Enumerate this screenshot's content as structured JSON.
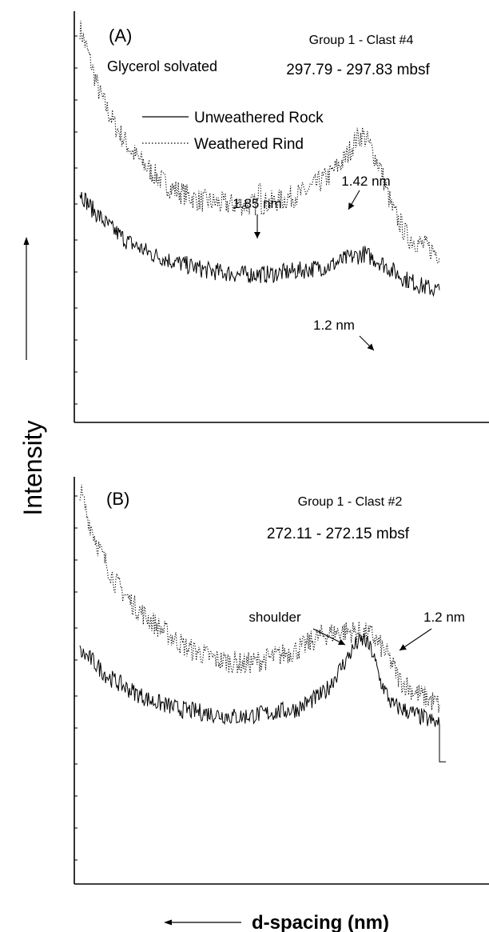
{
  "figure": {
    "y_axis_label": "Intensity",
    "x_axis_label": "d-spacing (nm)"
  },
  "chart_data": [
    {
      "type": "line",
      "panel": "(A)",
      "title": "Group 1 - Clast #4",
      "subtitle": "297.79 - 297.83 mbsf",
      "note": "Glycerol solvated",
      "xlabel": "d-spacing (nm)",
      "ylabel": "Intensity",
      "grid": false,
      "legend_position": "top-center",
      "legend": [
        {
          "name": "Unweathered Rock",
          "style": "solid"
        },
        {
          "name": "Weathered Rind",
          "style": "dotted"
        }
      ],
      "series": [
        {
          "name": "Weathered Rind",
          "style": "dotted",
          "keypoints": [
            [
              0,
              0.96
            ],
            [
              2,
              0.9
            ],
            [
              5,
              0.8
            ],
            [
              9,
              0.72
            ],
            [
              13,
              0.66
            ],
            [
              18,
              0.61
            ],
            [
              23,
              0.57
            ],
            [
              30,
              0.54
            ],
            [
              38,
              0.53
            ],
            [
              45,
              0.53
            ],
            [
              51,
              0.54
            ],
            [
              57,
              0.56
            ],
            [
              63,
              0.6
            ],
            [
              67,
              0.64
            ],
            [
              70,
              0.69
            ],
            [
              71.5,
              0.7
            ],
            [
              73,
              0.68
            ],
            [
              76,
              0.62
            ],
            [
              79,
              0.52
            ],
            [
              83,
              0.45
            ],
            [
              87,
              0.43
            ],
            [
              91,
              0.41
            ]
          ],
          "spikes": [
            [
              45.5,
              0.58
            ]
          ]
        },
        {
          "name": "Unweathered Rock",
          "style": "solid",
          "keypoints": [
            [
              0,
              0.56
            ],
            [
              3,
              0.52
            ],
            [
              7,
              0.48
            ],
            [
              12,
              0.44
            ],
            [
              18,
              0.41
            ],
            [
              24,
              0.39
            ],
            [
              32,
              0.37
            ],
            [
              40,
              0.36
            ],
            [
              48,
              0.36
            ],
            [
              56,
              0.37
            ],
            [
              63,
              0.38
            ],
            [
              68,
              0.4
            ],
            [
              72,
              0.41
            ],
            [
              76,
              0.39
            ],
            [
              82,
              0.35
            ],
            [
              87,
              0.33
            ],
            [
              91,
              0.32
            ]
          ],
          "spikes": []
        }
      ],
      "annotations": [
        {
          "text": "1.85 nm",
          "x": 45.5,
          "y": 0.58
        },
        {
          "text": "1.42 nm",
          "x": 71.5,
          "y": 0.7
        },
        {
          "text": "1.2 nm",
          "x": 72,
          "y": 0.41
        }
      ]
    },
    {
      "type": "line",
      "panel": "(B)",
      "title": "Group 1 - Clast #2",
      "subtitle": "272.11 - 272.15 mbsf",
      "xlabel": "d-spacing (nm)",
      "ylabel": "Intensity",
      "grid": false,
      "series": [
        {
          "name": "Weathered Rind",
          "style": "dotted",
          "keypoints": [
            [
              0,
              0.97
            ],
            [
              2,
              0.9
            ],
            [
              5,
              0.82
            ],
            [
              9,
              0.74
            ],
            [
              14,
              0.68
            ],
            [
              20,
              0.63
            ],
            [
              27,
              0.58
            ],
            [
              35,
              0.55
            ],
            [
              42,
              0.54
            ],
            [
              50,
              0.56
            ],
            [
              56,
              0.58
            ],
            [
              61,
              0.61
            ],
            [
              66,
              0.62
            ],
            [
              70,
              0.62
            ],
            [
              74,
              0.61
            ],
            [
              78,
              0.56
            ],
            [
              81,
              0.5
            ],
            [
              85,
              0.47
            ],
            [
              89,
              0.45
            ],
            [
              91,
              0.44
            ]
          ],
          "spikes": []
        },
        {
          "name": "Unweathered Rock",
          "style": "solid",
          "keypoints": [
            [
              0,
              0.57
            ],
            [
              3,
              0.55
            ],
            [
              7,
              0.51
            ],
            [
              12,
              0.48
            ],
            [
              18,
              0.45
            ],
            [
              25,
              0.43
            ],
            [
              32,
              0.42
            ],
            [
              40,
              0.41
            ],
            [
              48,
              0.42
            ],
            [
              55,
              0.43
            ],
            [
              62,
              0.47
            ],
            [
              66,
              0.53
            ],
            [
              70,
              0.59
            ],
            [
              72,
              0.6
            ],
            [
              74,
              0.57
            ],
            [
              76,
              0.5
            ],
            [
              79,
              0.44
            ],
            [
              84,
              0.42
            ],
            [
              89,
              0.4
            ],
            [
              91,
              0.39
            ]
          ],
          "drop_to": 0.3
        }
      ],
      "annotations": [
        {
          "text": "shoulder",
          "x": 62,
          "y": 0.62
        },
        {
          "text": "1.2 nm",
          "x": 73,
          "y": 0.62
        }
      ]
    }
  ]
}
